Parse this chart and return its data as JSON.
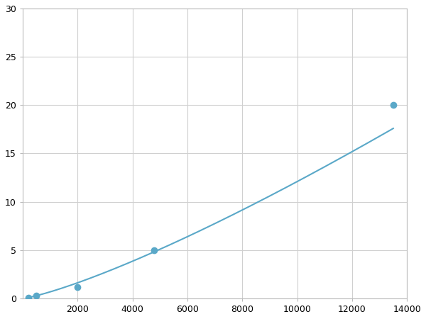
{
  "x_points": [
    200,
    500,
    2000,
    4800,
    13500
  ],
  "y_points": [
    0.1,
    0.3,
    1.2,
    5.0,
    20.0
  ],
  "line_color": "#5aa8c8",
  "marker_color": "#5aa8c8",
  "marker_size": 6,
  "xlim": [
    0,
    14000
  ],
  "ylim": [
    0,
    30
  ],
  "xticks": [
    2000,
    4000,
    6000,
    8000,
    10000,
    12000,
    14000
  ],
  "xticklabels": [
    "2000",
    "4000",
    "6000",
    "8000",
    "10000",
    "12000",
    "14000"
  ],
  "yticks": [
    0,
    5,
    10,
    15,
    20,
    25,
    30
  ],
  "grid_color": "#d0d0d0",
  "background_color": "#ffffff",
  "spine_color": "#bbbbbb",
  "figsize": [
    6.0,
    4.5
  ],
  "dpi": 100
}
